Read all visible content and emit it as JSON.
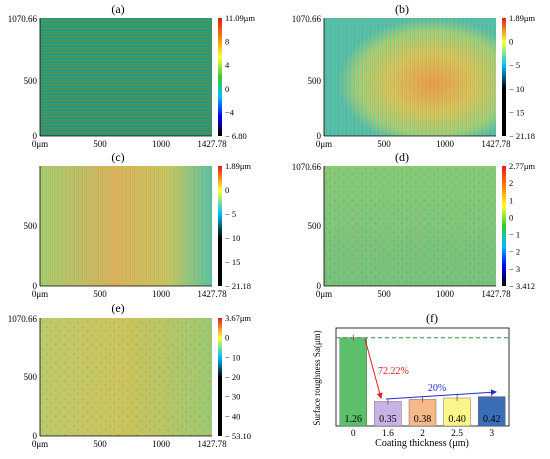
{
  "figure": {
    "panels": [
      {
        "label": "(a)",
        "y_top": "1070.66",
        "y_mid": "500",
        "y_bot": "0",
        "x_labels": [
          "0μm",
          "500",
          "1000",
          "1427.78"
        ],
        "colorbar": {
          "labels": [
            "11.09μm",
            "8",
            "4",
            "0",
            "−4",
            "− 6.80"
          ],
          "colors": [
            "#e41a1c",
            "#ff7f00",
            "#ffff33",
            "#33cc33",
            "#00bfff",
            "#0000ff",
            "#000000"
          ]
        }
      },
      {
        "label": "(b)",
        "y_top": "1070.66",
        "y_mid": "500",
        "y_bot": "0",
        "x_labels": [
          "0μm",
          "500",
          "1000",
          "1427.78"
        ],
        "colorbar": {
          "labels": [
            "1.89μm",
            "0",
            "− 5",
            "− 10",
            "− 15",
            "− 21.18"
          ],
          "colors": [
            "#e41a1c",
            "#ffff33",
            "#00bfff",
            "#000000",
            "#000000",
            "#000000"
          ]
        }
      },
      {
        "label": "(c)",
        "y_top": "",
        "y_mid": "500",
        "y_bot": "0",
        "x_labels": [
          "0μm",
          "500",
          "1000",
          "1427.78"
        ],
        "colorbar": {
          "labels": [
            "1.89μm",
            "0",
            "− 5",
            "− 10",
            "− 15",
            "− 21.18"
          ],
          "colors": [
            "#e41a1c",
            "#ffff33",
            "#00bfff",
            "#000000",
            "#000000",
            "#000000"
          ]
        }
      },
      {
        "label": "(d)",
        "y_top": "1070.66",
        "y_mid": "500",
        "y_bot": "0",
        "x_labels": [
          "0μm",
          "500",
          "1000",
          "1427.78"
        ],
        "colorbar": {
          "labels": [
            "2.77μm",
            "2",
            "1",
            "0",
            "− 1",
            "− 2",
            "− 3",
            "− 3.412"
          ],
          "colors": [
            "#e41a1c",
            "#ff7f00",
            "#ffff33",
            "#33cc33",
            "#00bfff",
            "#0000ff",
            "#000000"
          ]
        }
      },
      {
        "label": "(e)",
        "y_top": "1070.66",
        "y_mid": "500",
        "y_bot": "0",
        "x_labels": [
          "0μm",
          "500",
          "1000",
          "1427.78"
        ],
        "colorbar": {
          "labels": [
            "3.67μm",
            "0",
            "− 10",
            "− 20",
            "− 30",
            "− 40",
            "− 53.10"
          ],
          "colors": [
            "#e41a1c",
            "#ffff33",
            "#00bfff",
            "#000000",
            "#000000",
            "#000000",
            "#000000"
          ]
        }
      }
    ]
  },
  "chart_data": {
    "type": "bar",
    "title": "(f)",
    "xlabel": "Coating thickness (μm)",
    "ylabel": "Surface roughness Sa(μm)",
    "categories": [
      "0",
      "1.6",
      "2",
      "2.5",
      "3"
    ],
    "values": [
      1.26,
      0.35,
      0.38,
      0.4,
      0.42
    ],
    "value_labels": [
      "1.26",
      "0.35",
      "0.38",
      "0.40",
      "0.42"
    ],
    "ylim": [
      0,
      1.4
    ],
    "reference_line": 1.26,
    "colors": [
      "#5cc06b",
      "#c9b2e6",
      "#f7b98a",
      "#fbf58a",
      "#3a6fb8"
    ],
    "annotations": [
      "72.22%",
      "20%"
    ],
    "annotation_colors": [
      "#e02020",
      "#1f2bd6"
    ]
  }
}
